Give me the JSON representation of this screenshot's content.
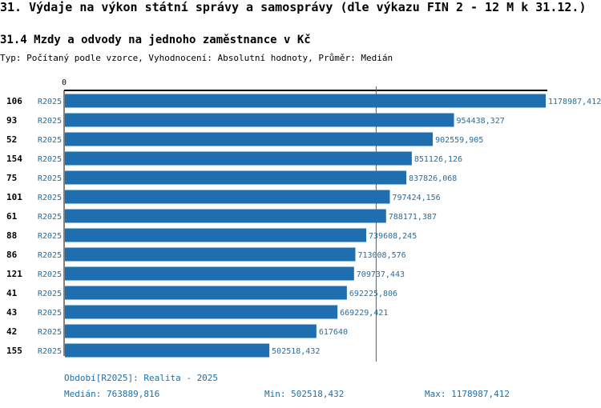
{
  "title": "31. Výdaje na výkon státní správy a samosprávy (dle výkazu FIN 2 - 12 M k 31.12.)",
  "subtitle": "31.4 Mzdy a odvody na jednoho zaměstnance v Kč",
  "meta": "Typ: Počítaný podle vzorce, Vyhodnocení: Absolutní hodnoty, Průměr: Medián",
  "colors": {
    "bar": "#1f6fb0",
    "label": "#1e6fa8",
    "median_line": "#1e6fa8"
  },
  "chart_data": {
    "type": "bar",
    "orientation": "horizontal",
    "axis_zero_label": "0",
    "xlim": [
      0,
      1178987.412
    ],
    "median": 763889.816,
    "rows": [
      {
        "id": "106",
        "series": "R2025",
        "value": 1178987.412,
        "label": "1178987,412"
      },
      {
        "id": "93",
        "series": "R2025",
        "value": 954438.327,
        "label": "954438,327"
      },
      {
        "id": "52",
        "series": "R2025",
        "value": 902559.905,
        "label": "902559,905"
      },
      {
        "id": "154",
        "series": "R2025",
        "value": 851126.126,
        "label": "851126,126"
      },
      {
        "id": "75",
        "series": "R2025",
        "value": 837826.068,
        "label": "837826,068"
      },
      {
        "id": "101",
        "series": "R2025",
        "value": 797424.156,
        "label": "797424,156"
      },
      {
        "id": "61",
        "series": "R2025",
        "value": 788171.387,
        "label": "788171,387"
      },
      {
        "id": "88",
        "series": "R2025",
        "value": 739608.245,
        "label": "739608,245"
      },
      {
        "id": "86",
        "series": "R2025",
        "value": 713008.576,
        "label": "713008,576"
      },
      {
        "id": "121",
        "series": "R2025",
        "value": 709737.443,
        "label": "709737,443"
      },
      {
        "id": "41",
        "series": "R2025",
        "value": 692225.806,
        "label": "692225,806"
      },
      {
        "id": "43",
        "series": "R2025",
        "value": 669229.421,
        "label": "669229,421"
      },
      {
        "id": "42",
        "series": "R2025",
        "value": 617640,
        "label": "617640"
      },
      {
        "id": "155",
        "series": "R2025",
        "value": 502518.432,
        "label": "502518,432"
      }
    ]
  },
  "footer": {
    "period": "Období[R2025]: Realita - 2025",
    "median": "Medián: 763889,816",
    "min": "Min: 502518,432",
    "max": "Max: 1178987,412"
  }
}
